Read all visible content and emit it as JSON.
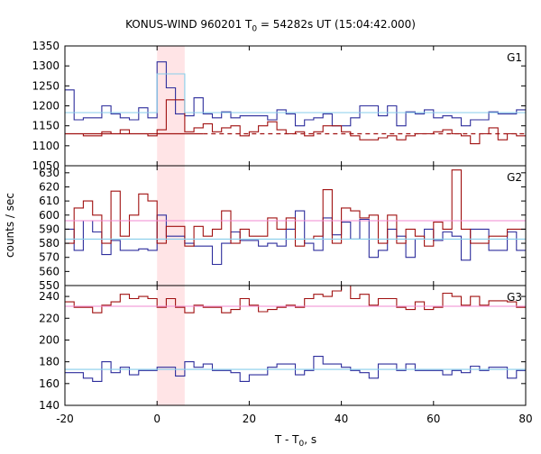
{
  "chart_data": {
    "type": "line",
    "step": true,
    "title": {
      "prefix": "KONUS-WIND 960201 T",
      "sub": "0",
      "suffix": " = 54282s UT (15:04:42.000)"
    },
    "xlabel": {
      "text": "T - T",
      "sub": "0",
      "suffix": ", s"
    },
    "ylabel": "counts / sec",
    "xlim": [
      -20,
      80
    ],
    "xticks": [
      "-20",
      "0",
      "20",
      "40",
      "60",
      "80"
    ],
    "grid": false,
    "highlight": {
      "x": [
        0,
        6
      ],
      "color": "#ffe4e6"
    },
    "bin_edges": [
      -20,
      -18,
      -16,
      -14,
      -12,
      -10,
      -8,
      -6,
      -4,
      -2,
      0,
      2,
      4,
      6,
      8,
      10,
      12,
      14,
      16,
      18,
      20,
      22,
      24,
      26,
      28,
      30,
      32,
      34,
      36,
      38,
      40,
      42,
      44,
      46,
      48,
      50,
      52,
      54,
      56,
      58,
      60,
      62,
      64,
      66,
      68,
      70,
      72,
      74,
      76,
      78,
      80
    ],
    "panels": [
      {
        "label": "G1",
        "ylim": [
          1050,
          1350
        ],
        "yticks": [
          "1050",
          "1100",
          "1150",
          "1200",
          "1250",
          "1300",
          "1350"
        ],
        "series": [
          {
            "color": "#2d2d9c",
            "values": [
              1240,
              1165,
              1170,
              1170,
              1200,
              1180,
              1170,
              1165,
              1195,
              1170,
              1310,
              1245,
              1180,
              1175,
              1220,
              1180,
              1170,
              1185,
              1170,
              1175,
              1175,
              1175,
              1165,
              1190,
              1180,
              1150,
              1165,
              1170,
              1180,
              1150,
              1150,
              1170,
              1200,
              1200,
              1175,
              1200,
              1150,
              1185,
              1180,
              1190,
              1170,
              1175,
              1170,
              1150,
              1165,
              1165,
              1185,
              1180,
              1180,
              1190,
              1215
            ]
          },
          {
            "color": "#a01010",
            "values": [
              1130,
              1130,
              1125,
              1125,
              1135,
              1130,
              1140,
              1130,
              1130,
              1125,
              1140,
              1215,
              1215,
              1135,
              1145,
              1155,
              1135,
              1145,
              1150,
              1125,
              1135,
              1150,
              1160,
              1140,
              1130,
              1135,
              1125,
              1135,
              1150,
              1150,
              1135,
              1125,
              1115,
              1115,
              1120,
              1125,
              1115,
              1125,
              1130,
              1130,
              1135,
              1140,
              1130,
              1125,
              1105,
              1130,
              1145,
              1115,
              1130,
              1125,
              1125
            ]
          },
          {
            "color": "#87ceeb",
            "values": [
              1183,
              1183,
              1183,
              1183,
              1183,
              1183,
              1183,
              1183,
              1183,
              1183,
              1280,
              1280,
              1280,
              1183,
              1183,
              1183,
              1183,
              1183,
              1183,
              1183,
              1183,
              1183,
              1183,
              1183,
              1183,
              1183,
              1183,
              1183,
              1183,
              1183,
              1183,
              1183,
              1183,
              1183,
              1183,
              1183,
              1183,
              1183,
              1183,
              1183,
              1183,
              1183,
              1183,
              1183,
              1183,
              1183,
              1183,
              1183,
              1183,
              1183,
              1183
            ]
          }
        ],
        "bg_lines": [
          {
            "color": "#a01010",
            "y": 1130,
            "x": [
              -20,
              10
            ],
            "dash": false
          },
          {
            "color": "#a01010",
            "y": 1130,
            "x": [
              10,
              80
            ],
            "dash": true
          }
        ]
      },
      {
        "label": "G2",
        "ylim": [
          550,
          635
        ],
        "yticks": [
          "550",
          "560",
          "570",
          "580",
          "590",
          "600",
          "610",
          "620",
          "630"
        ],
        "series": [
          {
            "color": "#2d2d9c",
            "values": [
              590,
              575,
              596,
              588,
              572,
              582,
              575,
              575,
              576,
              575,
              600,
              585,
              585,
              580,
              578,
              578,
              565,
              580,
              588,
              582,
              582,
              578,
              580,
              578,
              590,
              603,
              580,
              575,
              598,
              586,
              595,
              583,
              597,
              570,
              575,
              590,
              585,
              570,
              583,
              590,
              582,
              588,
              585,
              568,
              590,
              590,
              575,
              575,
              588,
              575,
              580
            ]
          },
          {
            "color": "#a01010",
            "values": [
              580,
              605,
              610,
              600,
              580,
              617,
              585,
              600,
              615,
              610,
              580,
              592,
              592,
              578,
              592,
              585,
              590,
              603,
              580,
              590,
              585,
              585,
              598,
              590,
              598,
              578,
              583,
              585,
              618,
              580,
              605,
              603,
              598,
              600,
              580,
              600,
              580,
              590,
              585,
              578,
              595,
              590,
              632,
              590,
              580,
              580,
              585,
              585,
              590,
              590,
              590
            ]
          },
          {
            "color": "#f28ad0",
            "values": [
              596,
              596,
              596,
              596,
              596,
              596,
              596,
              596,
              596,
              596,
              596,
              596,
              596,
              596,
              596,
              596,
              596,
              596,
              596,
              596,
              596,
              596,
              596,
              596,
              596,
              596,
              596,
              596,
              596,
              596,
              596,
              596,
              596,
              596,
              596,
              596,
              596,
              596,
              596,
              596,
              596,
              596,
              596,
              596,
              596,
              596,
              596,
              596,
              596,
              596,
              596
            ]
          },
          {
            "color": "#87ceeb",
            "values": [
              583,
              583,
              583,
              583,
              583,
              583,
              583,
              583,
              583,
              583,
              583,
              583,
              583,
              583,
              583,
              583,
              583,
              583,
              583,
              583,
              583,
              583,
              583,
              583,
              583,
              583,
              583,
              583,
              583,
              583,
              583,
              583,
              583,
              583,
              583,
              583,
              583,
              583,
              583,
              583,
              583,
              583,
              583,
              583,
              583,
              583,
              583,
              583,
              583,
              583,
              583
            ]
          }
        ],
        "bg_lines": []
      },
      {
        "label": "G3",
        "ylim": [
          140,
          250
        ],
        "yticks": [
          "140",
          "160",
          "180",
          "200",
          "220",
          "240"
        ],
        "series": [
          {
            "color": "#2d2d9c",
            "values": [
              170,
              170,
              165,
              162,
              180,
              170,
              175,
              168,
              172,
              172,
              175,
              175,
              167,
              180,
              175,
              178,
              172,
              172,
              170,
              162,
              168,
              168,
              175,
              178,
              178,
              168,
              172,
              185,
              178,
              178,
              175,
              172,
              170,
              165,
              178,
              178,
              172,
              178,
              172,
              172,
              172,
              168,
              172,
              170,
              176,
              172,
              175,
              175,
              165,
              172,
              175
            ]
          },
          {
            "color": "#a01010",
            "values": [
              235,
              230,
              230,
              225,
              232,
              235,
              242,
              238,
              240,
              238,
              230,
              238,
              230,
              225,
              232,
              230,
              230,
              225,
              228,
              238,
              232,
              226,
              228,
              230,
              232,
              230,
              238,
              242,
              240,
              245,
              250,
              238,
              242,
              232,
              238,
              238,
              230,
              228,
              235,
              228,
              230,
              243,
              240,
              232,
              240,
              232,
              236,
              236,
              235,
              230,
              228
            ]
          },
          {
            "color": "#f28ad0",
            "values": [
              231,
              231,
              231,
              231,
              231,
              231,
              231,
              231,
              231,
              231,
              231,
              231,
              231,
              231,
              231,
              231,
              231,
              231,
              231,
              231,
              231,
              231,
              231,
              231,
              231,
              231,
              231,
              231,
              231,
              231,
              231,
              231,
              231,
              231,
              231,
              231,
              231,
              231,
              231,
              231,
              231,
              231,
              231,
              231,
              231,
              231,
              231,
              231,
              231,
              231,
              231
            ]
          },
          {
            "color": "#87ceeb",
            "values": [
              173,
              173,
              173,
              173,
              173,
              173,
              173,
              173,
              173,
              173,
              173,
              173,
              173,
              173,
              173,
              173,
              173,
              173,
              173,
              173,
              173,
              173,
              173,
              173,
              173,
              173,
              173,
              173,
              173,
              173,
              173,
              173,
              173,
              173,
              173,
              173,
              173,
              173,
              173,
              173,
              173,
              173,
              173,
              173,
              173,
              173,
              173,
              173,
              173,
              173,
              173
            ]
          }
        ],
        "bg_lines": []
      }
    ]
  }
}
